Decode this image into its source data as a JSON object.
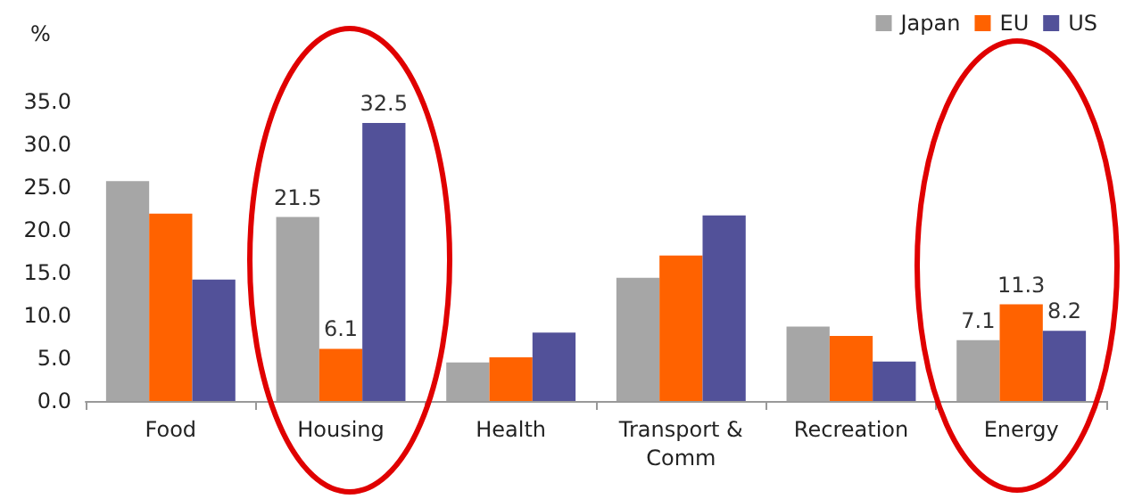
{
  "chart_data": {
    "type": "bar",
    "ylabel": "%",
    "categories": [
      "Food",
      "Housing",
      "Health",
      "Transport &\nComm",
      "Recreation",
      "Energy"
    ],
    "series": [
      {
        "name": "Japan",
        "color": "#a6a6a6",
        "values": [
          25.7,
          21.5,
          4.5,
          14.4,
          8.7,
          7.1
        ],
        "value_labels": [
          null,
          "21.5",
          null,
          null,
          null,
          "7.1"
        ]
      },
      {
        "name": "EU",
        "color": "#ff6200",
        "values": [
          21.9,
          6.1,
          5.1,
          17.0,
          7.6,
          11.3
        ],
        "value_labels": [
          null,
          "6.1",
          null,
          null,
          null,
          "11.3"
        ]
      },
      {
        "name": "US",
        "color": "#525199",
        "values": [
          14.2,
          32.5,
          8.0,
          21.7,
          4.6,
          8.2
        ],
        "value_labels": [
          null,
          "32.5",
          null,
          null,
          null,
          "8.2"
        ]
      }
    ],
    "ylim": [
      0,
      35
    ],
    "yticks": [
      {
        "value": 0,
        "label": "0.0"
      },
      {
        "value": 5,
        "label": "5.0"
      },
      {
        "value": 10,
        "label": "10.0"
      },
      {
        "value": 15,
        "label": "15.0"
      },
      {
        "value": 20,
        "label": "20.0"
      },
      {
        "value": 25,
        "label": "25.0"
      },
      {
        "value": 30,
        "label": "30.0"
      },
      {
        "value": 35,
        "label": "35.0"
      }
    ],
    "grid": false,
    "legend": "top right"
  }
}
